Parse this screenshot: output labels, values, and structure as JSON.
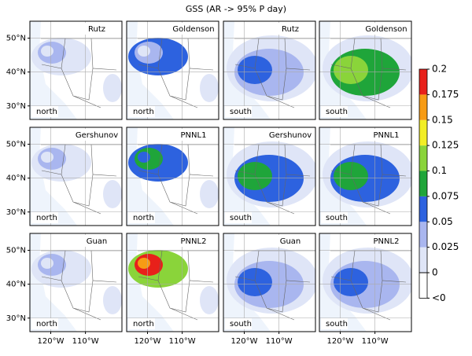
{
  "title": "GSS (AR -> 95% P day)",
  "panels": [
    {
      "name": "Rutz",
      "region": "north"
    },
    {
      "name": "Goldenson",
      "region": "north"
    },
    {
      "name": "Rutz",
      "region": "south"
    },
    {
      "name": "Goldenson",
      "region": "south"
    },
    {
      "name": "Gershunov",
      "region": "north"
    },
    {
      "name": "PNNL1",
      "region": "north"
    },
    {
      "name": "Gershunov",
      "region": "south"
    },
    {
      "name": "PNNL1",
      "region": "south"
    },
    {
      "name": "Guan",
      "region": "north"
    },
    {
      "name": "PNNL2",
      "region": "north"
    },
    {
      "name": "Guan",
      "region": "south"
    },
    {
      "name": "PNNL2",
      "region": "south"
    }
  ],
  "map": {
    "xlim": [
      -126,
      -99.5
    ],
    "ylim": [
      26,
      55
    ],
    "yticks": [
      {
        "value": 50,
        "label": "50°N"
      },
      {
        "value": 40,
        "label": "40°N"
      },
      {
        "value": 30,
        "label": "30°N"
      }
    ],
    "xticks": [
      {
        "value": -120,
        "label": "120°W"
      },
      {
        "value": -110,
        "label": "110°W"
      }
    ]
  },
  "colorbar": {
    "lim": [
      0,
      0.2
    ],
    "ticks": [
      0.2,
      0.175,
      0.15,
      0.125,
      0.1,
      0.075,
      0.05,
      0.025,
      0
    ],
    "under_label": "<0",
    "colors": [
      "#dfe5f7",
      "#a9b6ef",
      "#2d62df",
      "#1fa53a",
      "#8ad43a",
      "#f2ee25",
      "#f79b14",
      "#e8201a"
    ]
  }
}
